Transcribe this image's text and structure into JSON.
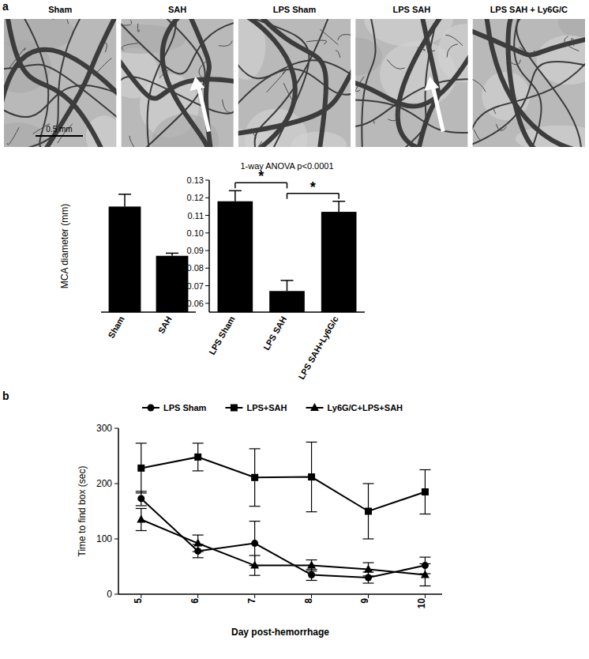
{
  "figure": {
    "panel_labels": [
      "a",
      "b"
    ]
  },
  "images": [
    {
      "label": "Sham",
      "arrow": false,
      "scale_bar": "0.5 mm"
    },
    {
      "label": "SAH",
      "arrow": true
    },
    {
      "label": "LPS Sham",
      "arrow": false
    },
    {
      "label": "LPS SAH",
      "arrow": true
    },
    {
      "label": "LPS SAH + Ly6G/C",
      "arrow": false
    }
  ],
  "chart_data": [
    {
      "type": "bar",
      "categories": [
        "Sham",
        "SAH"
      ],
      "values": [
        0.115,
        0.087
      ],
      "errors": [
        0.007,
        0.0015
      ],
      "color": "#000000",
      "ylabel": "MCA diameter (mm)",
      "ylim": [
        0.055,
        0.13
      ],
      "tick_labels": "x"
    },
    {
      "type": "bar",
      "title": "1-way ANOVA p<0.0001",
      "categories": [
        "LPS Sham",
        "LPS SAH",
        "LPS SAH+Ly6G/c"
      ],
      "values": [
        0.118,
        0.067,
        0.112
      ],
      "errors": [
        0.006,
        0.006,
        0.006
      ],
      "color": "#000000",
      "ylim": [
        0.055,
        0.13
      ],
      "yticks": [
        0.06,
        0.07,
        0.08,
        0.09,
        {
          "value": 0.1,
          "label": "0.10"
        },
        0.11,
        0.12,
        0.13
      ],
      "annotations": [
        {
          "text": "*",
          "between": [
            0,
            1
          ]
        },
        {
          "text": "*",
          "between": [
            1,
            2
          ]
        }
      ]
    },
    {
      "type": "line",
      "xlabel": "Day post-hemorrhage",
      "ylabel": "Time to find box (sec)",
      "x": [
        5,
        6,
        7,
        8,
        9,
        10
      ],
      "xlim": [
        4.6,
        10.3
      ],
      "xticks": [
        5,
        6,
        7,
        8,
        9,
        10
      ],
      "ylim": [
        0,
        300
      ],
      "yticks": [
        0,
        100,
        200,
        300
      ],
      "legend": "top",
      "series": [
        {
          "name": "LPS Sham",
          "color": "#000000",
          "marker": "circle",
          "values": [
            173,
            78,
            92,
            35,
            30,
            52
          ],
          "errors": [
            13,
            12,
            40,
            10,
            10,
            15
          ]
        },
        {
          "name": "LPS+SAH",
          "color": "#000000",
          "marker": "square",
          "values": [
            228,
            248,
            211,
            212,
            150,
            185
          ],
          "errors": [
            45,
            25,
            52,
            63,
            50,
            40
          ]
        },
        {
          "name": "Ly6G/C+LPS+SAH",
          "color": "#000000",
          "marker": "triangle",
          "values": [
            135,
            92,
            52,
            52,
            45,
            35
          ],
          "errors": [
            20,
            15,
            18,
            10,
            12,
            20
          ]
        }
      ]
    }
  ]
}
